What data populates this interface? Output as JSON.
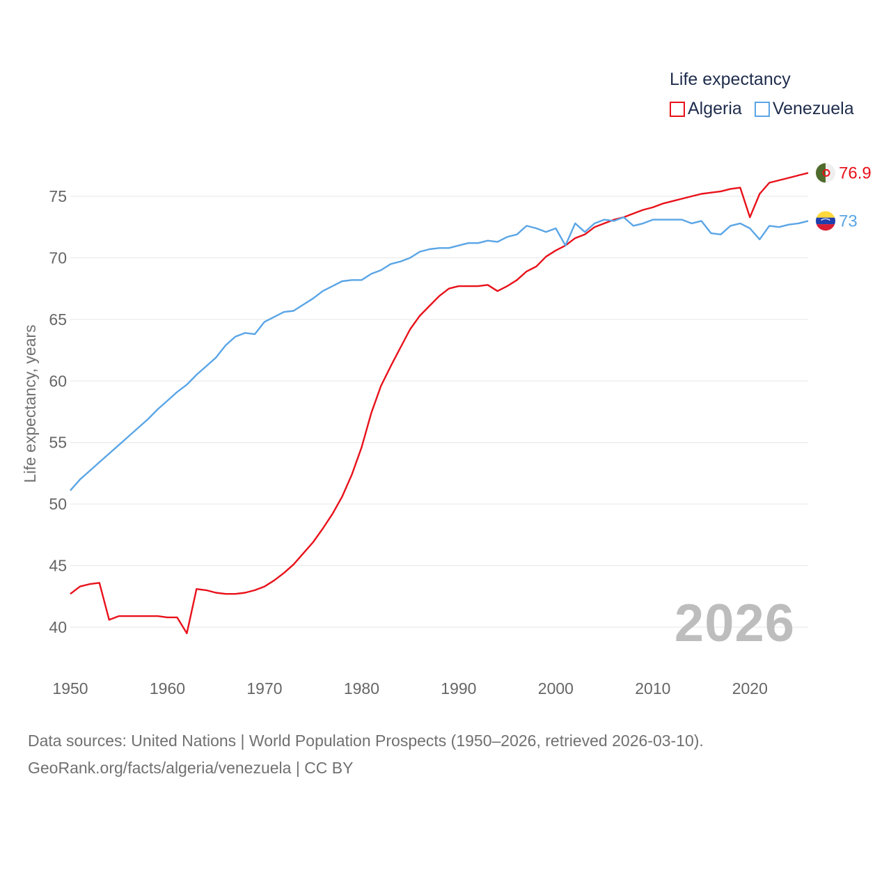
{
  "legend": {
    "title": "Life expectancy",
    "items": [
      {
        "name": "Algeria",
        "color": "#e8111a"
      },
      {
        "name": "Venezuela",
        "color": "#5aa5e6"
      }
    ]
  },
  "year_badge": "2026",
  "footer": {
    "line1": "Data sources: United Nations | World Population Prospects (1950–2026, retrieved 2026-03-10).",
    "line2": "GeoRank.org/facts/algeria/venezuela | CC BY"
  },
  "chart_data": {
    "type": "line",
    "title": "Life expectancy",
    "xlabel": "",
    "ylabel": "Life expectancy, years",
    "xlim": [
      1950,
      2026
    ],
    "ylim": [
      37,
      78
    ],
    "xticks": [
      1950,
      1960,
      1970,
      1980,
      1990,
      2000,
      2010,
      2020
    ],
    "yticks": [
      40,
      45,
      50,
      55,
      60,
      65,
      70,
      75
    ],
    "grid": true,
    "legend_position": "top-right",
    "series": [
      {
        "name": "Algeria",
        "color": "#e8111a",
        "end_label": "76.9",
        "x": [
          1950,
          1951,
          1952,
          1953,
          1954,
          1955,
          1956,
          1957,
          1958,
          1959,
          1960,
          1961,
          1962,
          1963,
          1964,
          1965,
          1966,
          1967,
          1968,
          1969,
          1970,
          1971,
          1972,
          1973,
          1974,
          1975,
          1976,
          1977,
          1978,
          1979,
          1980,
          1981,
          1982,
          1983,
          1984,
          1985,
          1986,
          1987,
          1988,
          1989,
          1990,
          1991,
          1992,
          1993,
          1994,
          1995,
          1996,
          1997,
          1998,
          1999,
          2000,
          2001,
          2002,
          2003,
          2004,
          2005,
          2006,
          2007,
          2008,
          2009,
          2010,
          2011,
          2012,
          2013,
          2014,
          2015,
          2016,
          2017,
          2018,
          2019,
          2020,
          2021,
          2022,
          2023,
          2024,
          2025,
          2026
        ],
        "y": [
          42.7,
          43.3,
          43.5,
          43.6,
          40.6,
          40.9,
          40.9,
          40.9,
          40.9,
          40.9,
          40.8,
          40.8,
          39.5,
          43.1,
          43.0,
          42.8,
          42.7,
          42.7,
          42.8,
          43.0,
          43.3,
          43.8,
          44.4,
          45.1,
          46.0,
          46.9,
          48.0,
          49.2,
          50.6,
          52.4,
          54.6,
          57.4,
          59.6,
          61.2,
          62.7,
          64.2,
          65.3,
          66.1,
          66.9,
          67.5,
          67.7,
          67.7,
          67.7,
          67.8,
          67.3,
          67.7,
          68.2,
          68.9,
          69.3,
          70.1,
          70.6,
          71.0,
          71.6,
          71.9,
          72.5,
          72.8,
          73.1,
          73.3,
          73.6,
          73.9,
          74.1,
          74.4,
          74.6,
          74.8,
          75.0,
          75.2,
          75.3,
          75.4,
          75.6,
          75.7,
          73.3,
          75.2,
          76.1,
          76.3,
          76.5,
          76.7,
          76.9
        ]
      },
      {
        "name": "Venezuela",
        "color": "#5aa5e6",
        "end_label": "73",
        "x": [
          1950,
          1951,
          1952,
          1953,
          1954,
          1955,
          1956,
          1957,
          1958,
          1959,
          1960,
          1961,
          1962,
          1963,
          1964,
          1965,
          1966,
          1967,
          1968,
          1969,
          1970,
          1971,
          1972,
          1973,
          1974,
          1975,
          1976,
          1977,
          1978,
          1979,
          1980,
          1981,
          1982,
          1983,
          1984,
          1985,
          1986,
          1987,
          1988,
          1989,
          1990,
          1991,
          1992,
          1993,
          1994,
          1995,
          1996,
          1997,
          1998,
          1999,
          2000,
          2001,
          2002,
          2003,
          2004,
          2005,
          2006,
          2007,
          2008,
          2009,
          2010,
          2011,
          2012,
          2013,
          2014,
          2015,
          2016,
          2017,
          2018,
          2019,
          2020,
          2021,
          2022,
          2023,
          2024,
          2025,
          2026
        ],
        "y": [
          51.1,
          52.0,
          52.7,
          53.4,
          54.1,
          54.8,
          55.5,
          56.2,
          56.9,
          57.7,
          58.4,
          59.1,
          59.7,
          60.5,
          61.2,
          61.9,
          62.9,
          63.6,
          63.9,
          63.8,
          64.8,
          65.2,
          65.6,
          65.7,
          66.2,
          66.7,
          67.3,
          67.7,
          68.1,
          68.2,
          68.2,
          68.7,
          69.0,
          69.5,
          69.7,
          70.0,
          70.5,
          70.7,
          70.8,
          70.8,
          71.0,
          71.2,
          71.2,
          71.4,
          71.3,
          71.7,
          71.9,
          72.6,
          72.4,
          72.1,
          72.4,
          71.0,
          72.8,
          72.1,
          72.8,
          73.1,
          73.0,
          73.3,
          72.6,
          72.8,
          73.1,
          73.1,
          73.1,
          73.1,
          72.8,
          73.0,
          72.0,
          71.9,
          72.6,
          72.8,
          72.4,
          71.5,
          72.6,
          72.5,
          72.7,
          72.8,
          73.0
        ]
      }
    ]
  }
}
